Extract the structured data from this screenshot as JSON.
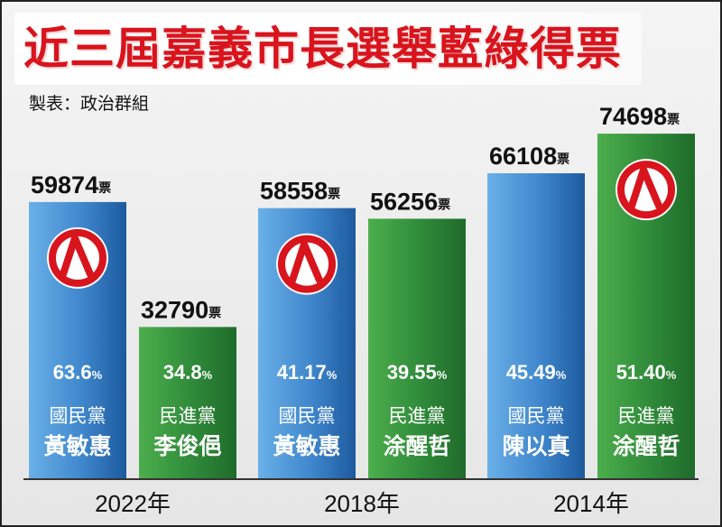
{
  "title": "近三屆嘉義市長選舉藍綠得票",
  "source": "製表：政治群組",
  "colors": {
    "blue_light": "#6ab0e8",
    "blue_dark": "#1d5a9e",
    "green_light": "#4cae4c",
    "green_dark": "#1f6b2a",
    "seal_red": "#d8141d",
    "title_red": "#d8141d"
  },
  "chart_data": {
    "type": "bar",
    "title": "近三屆嘉義市長選舉藍綠得票",
    "unit": "票",
    "ylim": [
      0,
      80000
    ],
    "groups": [
      {
        "year": "2022年",
        "bars": [
          {
            "party": "國民黨",
            "candidate": "黃敏惠",
            "votes": 59874,
            "votes_label": "59874",
            "percent": "63.6",
            "color": "blue",
            "winner": true
          },
          {
            "party": "民進黨",
            "candidate": "李俊俋",
            "votes": 32790,
            "votes_label": "32790",
            "percent": "34.8",
            "color": "green",
            "winner": false
          }
        ]
      },
      {
        "year": "2018年",
        "bars": [
          {
            "party": "國民黨",
            "candidate": "黃敏惠",
            "votes": 58558,
            "votes_label": "58558",
            "percent": "41.17",
            "color": "blue",
            "winner": true
          },
          {
            "party": "民進黨",
            "candidate": "涂醒哲",
            "votes": 56256,
            "votes_label": "56256",
            "percent": "39.55",
            "color": "green",
            "winner": false
          }
        ]
      },
      {
        "year": "2014年",
        "bars": [
          {
            "party": "國民黨",
            "candidate": "陳以真",
            "votes": 66108,
            "votes_label": "66108",
            "percent": "45.49",
            "color": "blue",
            "winner": false
          },
          {
            "party": "民進黨",
            "candidate": "涂醒哲",
            "votes": 74698,
            "votes_label": "74698",
            "percent": "51.40",
            "color": "green",
            "winner": true
          }
        ]
      }
    ],
    "percent_suffix": "%",
    "winner_icon": "vote-seal-icon",
    "grid": false,
    "legend": "none"
  }
}
